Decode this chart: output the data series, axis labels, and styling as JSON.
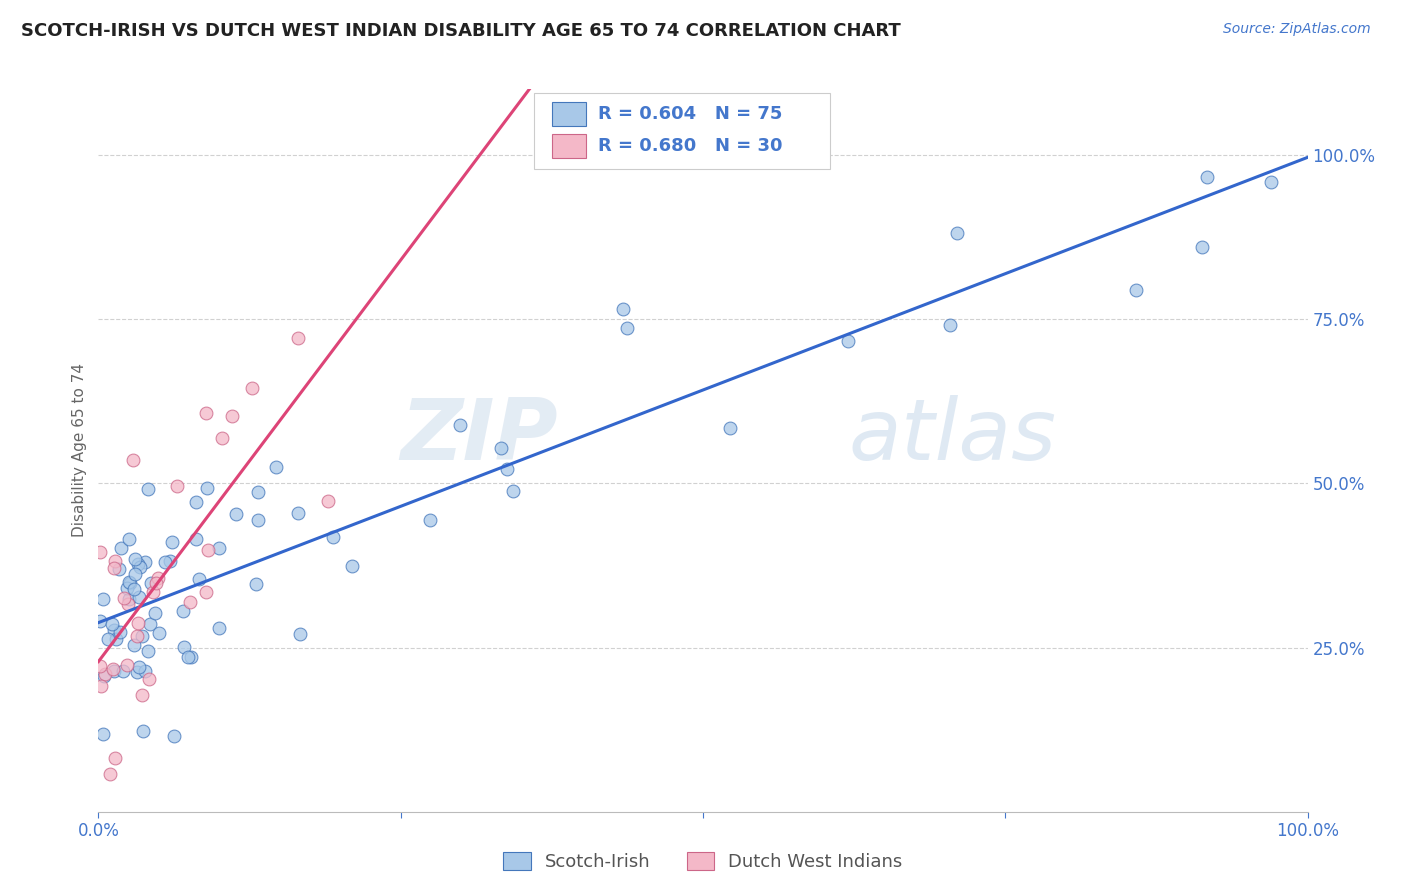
{
  "title": "SCOTCH-IRISH VS DUTCH WEST INDIAN DISABILITY AGE 65 TO 74 CORRELATION CHART",
  "source_text": "Source: ZipAtlas.com",
  "ylabel": "Disability Age 65 to 74",
  "blue_color": "#a8c8e8",
  "blue_edge_color": "#4477bb",
  "blue_line_color": "#3366cc",
  "pink_color": "#f4b8c8",
  "pink_edge_color": "#cc6688",
  "pink_line_color": "#dd4477",
  "R_blue": 0.604,
  "N_blue": 75,
  "R_pink": 0.68,
  "N_pink": 30,
  "legend_label_blue": "Scotch-Irish",
  "legend_label_pink": "Dutch West Indians",
  "watermark_zip": "ZIP",
  "watermark_atlas": "atlas",
  "background_color": "#ffffff",
  "grid_color": "#cccccc",
  "annotation_color": "#4477cc",
  "title_color": "#222222",
  "source_color": "#4477cc"
}
